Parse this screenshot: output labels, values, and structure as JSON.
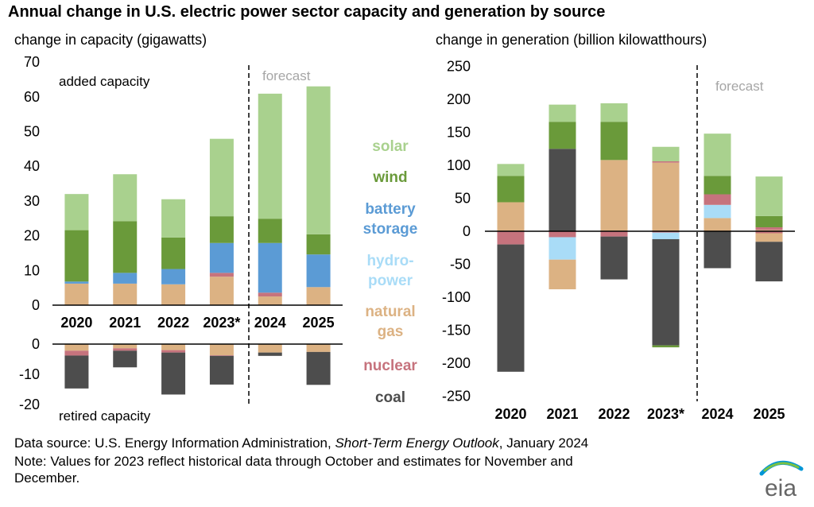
{
  "title": "Annual change in U.S. electric power sector capacity and generation by source",
  "colors": {
    "solar": "#a9d18e",
    "wind": "#6a9a3a",
    "battery": "#5b9bd5",
    "hydro": "#a9dcf7",
    "gas": "#dcb283",
    "nuclear": "#c6737d",
    "coal": "#4d4d4d"
  },
  "legend": [
    {
      "key": "solar",
      "lines": [
        "solar"
      ]
    },
    {
      "key": "wind",
      "lines": [
        "wind"
      ]
    },
    {
      "key": "battery",
      "lines": [
        "battery",
        "storage"
      ]
    },
    {
      "key": "hydro",
      "lines": [
        "hydro-",
        "power"
      ]
    },
    {
      "key": "gas",
      "lines": [
        "natural",
        "gas"
      ]
    },
    {
      "key": "nuclear",
      "lines": [
        "nuclear"
      ]
    },
    {
      "key": "coal",
      "lines": [
        "coal"
      ]
    }
  ],
  "chart_data": [
    {
      "type": "bar",
      "stacked": true,
      "subtitle": "change in capacity (gigawatts)",
      "categories": [
        "2020",
        "2021",
        "2022",
        "2023*",
        "2024",
        "2025"
      ],
      "annotations": {
        "forecast": "forecast",
        "added": "added capacity",
        "retired": "retired capacity"
      },
      "added": {
        "ylim": [
          0,
          70
        ],
        "ticks": [
          "0",
          "10",
          "20",
          "30",
          "40",
          "50",
          "60",
          "70"
        ],
        "series": [
          {
            "name": "natural gas",
            "key": "gas",
            "values": [
              6.2,
              6.2,
              6.0,
              8.2,
              2.5,
              5.2
            ]
          },
          {
            "name": "nuclear",
            "key": "nuclear",
            "values": [
              0,
              0,
              0,
              1.1,
              1.1,
              0
            ]
          },
          {
            "name": "hydro-power",
            "key": "hydro",
            "values": [
              0,
              0,
              0,
              0,
              0,
              0
            ]
          },
          {
            "name": "battery storage",
            "key": "battery",
            "values": [
              0.6,
              3.1,
              4.4,
              8.6,
              14.3,
              9.4
            ]
          },
          {
            "name": "wind",
            "key": "wind",
            "values": [
              14.8,
              14.9,
              9.1,
              7.7,
              7.0,
              5.8
            ]
          },
          {
            "name": "solar",
            "key": "solar",
            "values": [
              10.4,
              13.5,
              11.0,
              22.3,
              36.0,
              42.6
            ]
          }
        ]
      },
      "retired": {
        "ylim": [
          -20,
          0
        ],
        "ticks": [
          "-20",
          "-10",
          "0"
        ],
        "series": [
          {
            "name": "natural gas",
            "key": "gas",
            "values": [
              -2.2,
              -1.4,
              -2.0,
              -3.7,
              -2.8,
              -2.6
            ]
          },
          {
            "name": "nuclear",
            "key": "nuclear",
            "values": [
              -1.6,
              -0.8,
              -0.8,
              -0.2,
              0,
              0
            ]
          },
          {
            "name": "coal",
            "key": "coal",
            "values": [
              -10.9,
              -5.5,
              -13.9,
              -9.5,
              -1.1,
              -10.9
            ]
          }
        ]
      }
    },
    {
      "type": "bar",
      "stacked": true,
      "subtitle": "change in generation (billion kilowatthours)",
      "categories": [
        "2020",
        "2021",
        "2022",
        "2023*",
        "2024",
        "2025"
      ],
      "annotations": {
        "forecast": "forecast"
      },
      "ylim": [
        -250,
        250
      ],
      "ticks": [
        "-250",
        "-200",
        "-150",
        "-100",
        "-50",
        "0",
        "50",
        "100",
        "150",
        "200",
        "250"
      ],
      "series": [
        {
          "name": "coal",
          "key": "coal",
          "values": [
            0,
            125,
            0,
            0,
            0,
            0
          ]
        },
        {
          "name": "natural gas",
          "key": "gas",
          "values": [
            44,
            0,
            108,
            104,
            20,
            2
          ]
        },
        {
          "name": "hydro-power",
          "key": "hydro",
          "values": [
            0,
            0,
            0,
            0,
            0,
            0
          ]
        },
        {
          "name": "nuclear",
          "key": "nuclear",
          "values": [
            0,
            0,
            0,
            2,
            16,
            4
          ]
        },
        {
          "name": "battery storage",
          "key": "battery",
          "values": [
            0,
            0,
            0,
            0,
            0,
            0
          ]
        },
        {
          "name": "wind",
          "key": "wind",
          "values": [
            40,
            41,
            58,
            0,
            28,
            17
          ]
        },
        {
          "name": "solar",
          "key": "solar",
          "values": [
            18,
            26,
            28,
            22,
            64,
            60
          ]
        }
      ],
      "negative_series": [
        {
          "name": "nuclear",
          "key": "nuclear",
          "values": [
            -20,
            -9,
            -8,
            -2,
            0,
            -3
          ]
        },
        {
          "name": "hydro-power",
          "key": "hydro",
          "values": [
            0,
            -34,
            0,
            -10,
            0,
            0
          ]
        },
        {
          "name": "natural gas",
          "key": "gas",
          "values": [
            0,
            -45,
            0,
            0,
            0,
            -13
          ]
        },
        {
          "name": "coal",
          "key": "coal",
          "values": [
            -193,
            0,
            -65,
            -161,
            -56,
            -60
          ]
        },
        {
          "name": "wind",
          "key": "wind",
          "values": [
            0,
            0,
            0,
            -3,
            0,
            0
          ]
        }
      ],
      "positive_fix": {
        "2024_hydro": 20
      }
    }
  ],
  "footer": {
    "source_prefix": "Data source: U.S. Energy Information Administration, ",
    "source_italic": "Short-Term Energy Outlook",
    "source_suffix": ", January 2024",
    "note_line1": "Note: Values for 2023 reflect historical data through October and estimates for November and",
    "note_line2": "December."
  },
  "logo_text": "eia"
}
